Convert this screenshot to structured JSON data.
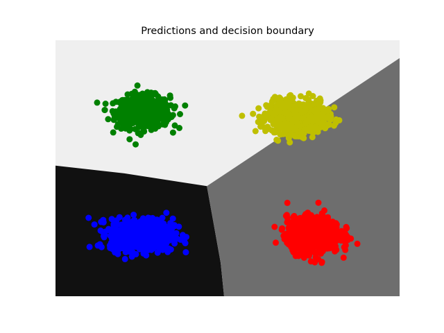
{
  "chart_data": {
    "type": "scatter",
    "title": "Predictions and decision boundary",
    "xlabel": "",
    "ylabel": "",
    "xlim": [
      0,
      10
    ],
    "ylim": [
      0,
      10
    ],
    "axes_visible": false,
    "grid": false,
    "legend": "none",
    "regions": [
      {
        "id": "top-left-top",
        "color": "#efefef",
        "polygon": [
          [
            0,
            5.1
          ],
          [
            4.4,
            4.3
          ],
          [
            10,
            9.3
          ],
          [
            10,
            10
          ],
          [
            0,
            10
          ]
        ]
      },
      {
        "id": "bottom-left",
        "color": "#111111",
        "polygon": [
          [
            0,
            0
          ],
          [
            4.9,
            0
          ],
          [
            4.8,
            1.3
          ],
          [
            4.6,
            2.8
          ],
          [
            4.4,
            4.3
          ],
          [
            2.0,
            4.8
          ],
          [
            0,
            5.1
          ]
        ]
      },
      {
        "id": "right-bottom",
        "color": "#6e6e6e",
        "polygon": [
          [
            4.9,
            0
          ],
          [
            10,
            0
          ],
          [
            10,
            9.3
          ],
          [
            4.4,
            4.3
          ],
          [
            4.6,
            2.8
          ],
          [
            4.8,
            1.3
          ]
        ]
      }
    ],
    "series": [
      {
        "color": "#008000",
        "cluster": {
          "center": [
            2.55,
            7.2
          ],
          "spread": [
            0.55,
            0.45
          ],
          "n": 700
        }
      },
      {
        "color": "#bfbf00",
        "cluster": {
          "center": [
            7.0,
            7.0
          ],
          "spread": [
            0.6,
            0.45
          ],
          "n": 700
        }
      },
      {
        "color": "#0000ff",
        "cluster": {
          "center": [
            2.5,
            2.4
          ],
          "spread": [
            0.65,
            0.45
          ],
          "n": 700
        }
      },
      {
        "color": "#ff0000",
        "cluster": {
          "center": [
            7.5,
            2.4
          ],
          "spread": [
            0.55,
            0.5
          ],
          "n": 700
        }
      }
    ]
  }
}
